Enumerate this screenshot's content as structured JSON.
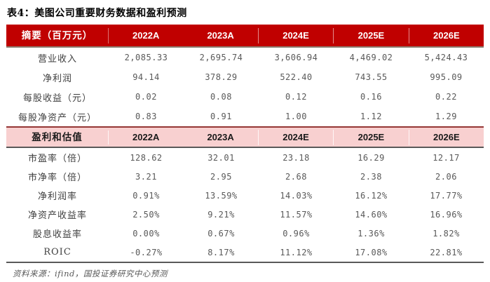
{
  "title": "表4：美图公司重要财务数据和盈利预测",
  "colors": {
    "header_bg": "#c00000",
    "header_text": "#ffffff",
    "band_bg": "#f8d0d0",
    "band_border_top": "#943634",
    "table_bottom_border": "#595959",
    "value_text": "#595959",
    "label_text": "#3f3f3f"
  },
  "table": {
    "section1": {
      "header_label": "摘要（百万元）",
      "years": [
        "2022A",
        "2023A",
        "2024E",
        "2025E",
        "2026E"
      ],
      "rows": [
        {
          "label": "营业收入",
          "values": [
            "2,085.33",
            "2,695.74",
            "3,606.94",
            "4,469.02",
            "5,424.43"
          ]
        },
        {
          "label": "净利润",
          "values": [
            "94.14",
            "378.29",
            "522.40",
            "743.55",
            "995.09"
          ]
        },
        {
          "label": "每股收益（元）",
          "values": [
            "0.02",
            "0.08",
            "0.12",
            "0.16",
            "0.22"
          ]
        },
        {
          "label": "每股净资产（元）",
          "values": [
            "0.83",
            "0.91",
            "1.00",
            "1.12",
            "1.29"
          ]
        }
      ]
    },
    "section2": {
      "header_label": "盈利和估值",
      "years": [
        "2022A",
        "2023A",
        "2024E",
        "2025E",
        "2026E"
      ],
      "rows": [
        {
          "label": "市盈率（倍）",
          "values": [
            "128.62",
            "32.01",
            "23.18",
            "16.29",
            "12.17"
          ]
        },
        {
          "label": "市净率（倍）",
          "values": [
            "3.21",
            "2.95",
            "2.68",
            "2.38",
            "2.06"
          ]
        },
        {
          "label": "净利润率",
          "values": [
            "0.91%",
            "13.59%",
            "14.03%",
            "16.12%",
            "17.77%"
          ]
        },
        {
          "label": "净资产收益率",
          "values": [
            "2.50%",
            "9.21%",
            "11.57%",
            "14.60%",
            "16.96%"
          ]
        },
        {
          "label": "股息收益率",
          "values": [
            "0.00%",
            "0.67%",
            "0.96%",
            "1.36%",
            "1.82%"
          ]
        },
        {
          "label": "ROIC",
          "values": [
            "-0.27%",
            "8.17%",
            "11.12%",
            "17.08%",
            "22.81%"
          ]
        }
      ]
    }
  },
  "footer": {
    "source": "资料来源：ifind，国投证券研究中心预测"
  }
}
